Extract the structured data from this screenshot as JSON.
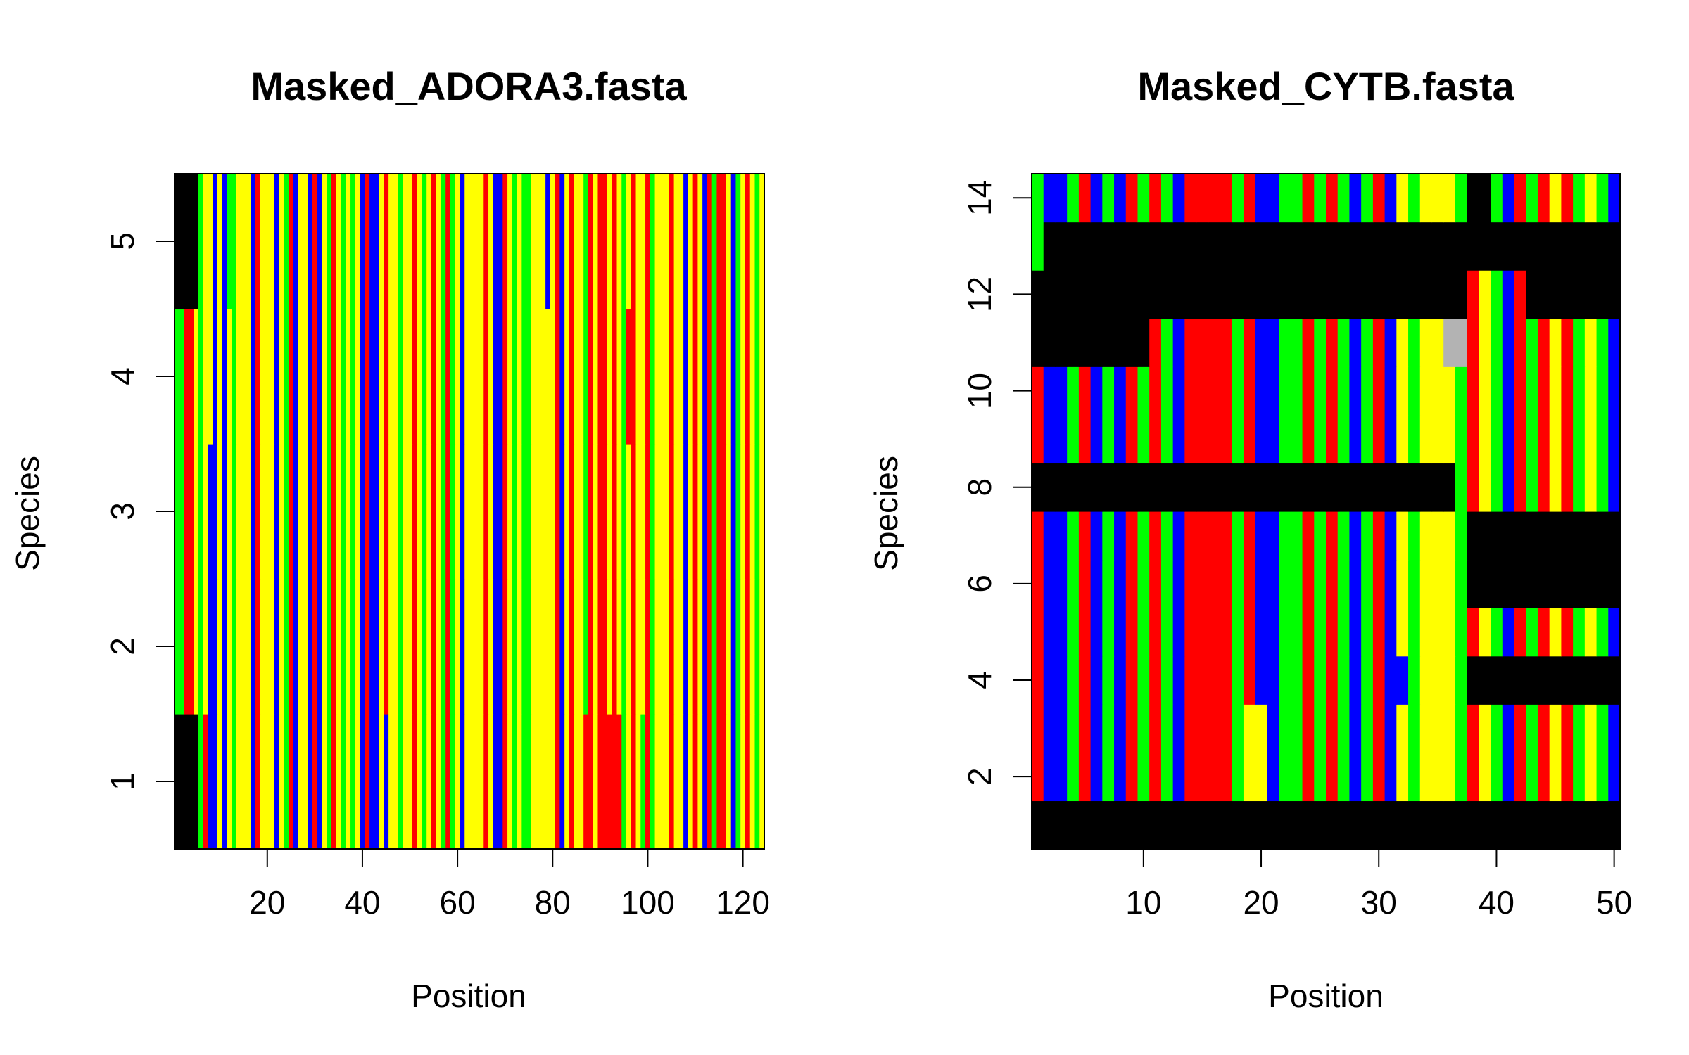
{
  "colors": {
    "A": "#ff0000",
    "C": "#00ff00",
    "G": "#0000ff",
    "T": "#ffff00",
    "gap": "#000000",
    "N": "#b3b3b3"
  },
  "chart_data": [
    {
      "type": "heatmap",
      "title": "Masked_ADORA3.fasta",
      "xlabel": "Position",
      "ylabel": "Species",
      "xlim": [
        0.5,
        124.5
      ],
      "ylim": [
        0.5,
        5.5
      ],
      "xticks": [
        20,
        40,
        60,
        80,
        100,
        120
      ],
      "yticks": [
        1,
        2,
        3,
        4,
        5
      ],
      "rows": 5,
      "columns": 124,
      "base_column_pattern": "TTTTTCTTGTGTCTTTGATTTGTCAGTTGAGTCATCTCTGAGGTATTCTTATCTATCACTGTTTTATGGATCTCCTTTTTAGTATTCATAATATCTATTACTTTATTGTATGACAATGCTATC",
      "overrides": [
        {
          "rows": [
            1,
            5
          ],
          "from": 1,
          "to": 5,
          "state": "gap"
        },
        {
          "rows": [
            2,
            3,
            4
          ],
          "from": 1,
          "to": 2,
          "state": "C"
        },
        {
          "rows": [
            2,
            3,
            4
          ],
          "from": 3,
          "to": 4,
          "state": "A"
        },
        {
          "rows": [
            1
          ],
          "from": 7,
          "to": 7,
          "state": "A"
        },
        {
          "rows": [
            1,
            2,
            3
          ],
          "from": 8,
          "to": 8,
          "state": "G"
        },
        {
          "rows": [
            5
          ],
          "from": 12,
          "to": 12,
          "state": "C"
        },
        {
          "rows": [
            1
          ],
          "from": 45,
          "to": 45,
          "state": "G"
        },
        {
          "rows": [
            1
          ],
          "from": 87,
          "to": 88,
          "state": "A"
        },
        {
          "rows": [
            1
          ],
          "from": 92,
          "to": 94,
          "state": "A"
        },
        {
          "rows": [
            4
          ],
          "from": 96,
          "to": 96,
          "state": "A"
        },
        {
          "rows": [
            1
          ],
          "from": 99,
          "to": 99,
          "state": "C"
        },
        {
          "rows": [
            1
          ],
          "from": 108,
          "to": 108,
          "state": "G"
        },
        {
          "rows": [
            5
          ],
          "from": 79,
          "to": 79,
          "state": "G"
        }
      ]
    },
    {
      "type": "heatmap",
      "title": "Masked_CYTB.fasta",
      "xlabel": "Position",
      "ylabel": "Species",
      "xlim": [
        0.5,
        50.5
      ],
      "ylim": [
        0.5,
        14.5
      ],
      "xticks": [
        10,
        20,
        30,
        40,
        50
      ],
      "yticks": [
        2,
        4,
        6,
        8,
        10,
        12,
        14
      ],
      "rows": 14,
      "columns": 50,
      "base_column_pattern": "AGGCAGCGACACGAAAACAGGCCACACGCAGTCTTTCATCGACATACTCG",
      "overrides": [
        {
          "rows": [
            1,
            8
          ],
          "from": 1,
          "to": 36,
          "state": "gap"
        },
        {
          "rows": [
            1,
            6,
            7
          ],
          "from": 38,
          "to": 50,
          "state": "gap"
        },
        {
          "rows": [
            1
          ],
          "from": 37,
          "to": 37,
          "state": "gap"
        },
        {
          "rows": [
            1
          ],
          "from": 1,
          "to": 16,
          "state": "gap"
        },
        {
          "rows": [
            4
          ],
          "from": 38,
          "to": 50,
          "state": "gap"
        },
        {
          "rows": [
            12,
            13
          ],
          "from": 1,
          "to": 37,
          "state": "gap"
        },
        {
          "rows": [
            11
          ],
          "from": 1,
          "to": 10,
          "state": "gap"
        },
        {
          "rows": [
            12,
            13
          ],
          "from": 43,
          "to": 50,
          "state": "gap"
        },
        {
          "rows": [
            13
          ],
          "from": 38,
          "to": 42,
          "state": "gap"
        },
        {
          "rows": [
            14
          ],
          "from": 38,
          "to": 39,
          "state": "gap"
        },
        {
          "rows": [
            11
          ],
          "from": 36,
          "to": 37,
          "state": "N"
        },
        {
          "rows": [
            14,
            13
          ],
          "from": 1,
          "to": 1,
          "state": "C"
        },
        {
          "rows": [
            2,
            3
          ],
          "from": 19,
          "to": 20,
          "state": "T"
        },
        {
          "rows": [
            4
          ],
          "from": 32,
          "to": 32,
          "state": "G"
        },
        {
          "rows": [
            10
          ],
          "from": 41,
          "to": 41,
          "state": "G"
        }
      ]
    }
  ]
}
